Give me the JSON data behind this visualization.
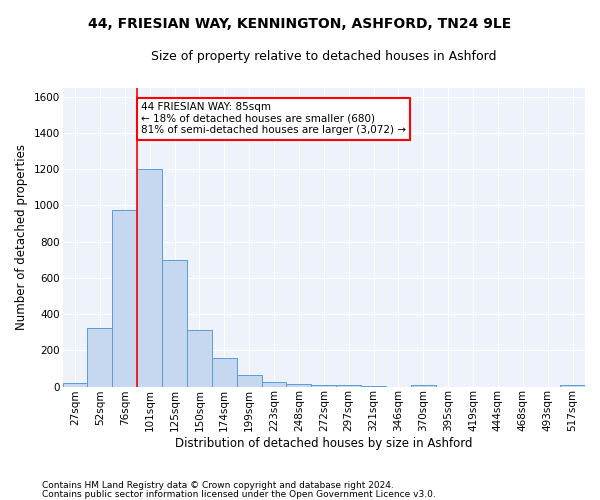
{
  "title1": "44, FRIESIAN WAY, KENNINGTON, ASHFORD, TN24 9LE",
  "title2": "Size of property relative to detached houses in Ashford",
  "xlabel": "Distribution of detached houses by size in Ashford",
  "ylabel": "Number of detached properties",
  "categories": [
    "27sqm",
    "52sqm",
    "76sqm",
    "101sqm",
    "125sqm",
    "150sqm",
    "174sqm",
    "199sqm",
    "223sqm",
    "248sqm",
    "272sqm",
    "297sqm",
    "321sqm",
    "346sqm",
    "370sqm",
    "395sqm",
    "419sqm",
    "444sqm",
    "468sqm",
    "493sqm",
    "517sqm"
  ],
  "values": [
    20,
    325,
    975,
    1200,
    700,
    310,
    155,
    65,
    25,
    15,
    10,
    10,
    5,
    0,
    10,
    0,
    0,
    0,
    0,
    0,
    10
  ],
  "bar_color": "#c5d8f0",
  "bar_edge_color": "#5b9bd5",
  "vline_color": "red",
  "vline_x": 2.5,
  "annotation_line1": "44 FRIESIAN WAY: 85sqm",
  "annotation_line2": "← 18% of detached houses are smaller (680)",
  "annotation_line3": "81% of semi-detached houses are larger (3,072) →",
  "annotation_box_color": "white",
  "annotation_box_edge": "red",
  "ylim": [
    0,
    1650
  ],
  "yticks": [
    0,
    200,
    400,
    600,
    800,
    1000,
    1200,
    1400,
    1600
  ],
  "background_color": "#eef2fa",
  "footer1": "Contains HM Land Registry data © Crown copyright and database right 2024.",
  "footer2": "Contains public sector information licensed under the Open Government Licence v3.0.",
  "title1_fontsize": 10,
  "title2_fontsize": 9,
  "xlabel_fontsize": 8.5,
  "ylabel_fontsize": 8.5,
  "tick_fontsize": 7.5,
  "annotation_fontsize": 7.5,
  "footer_fontsize": 6.5
}
